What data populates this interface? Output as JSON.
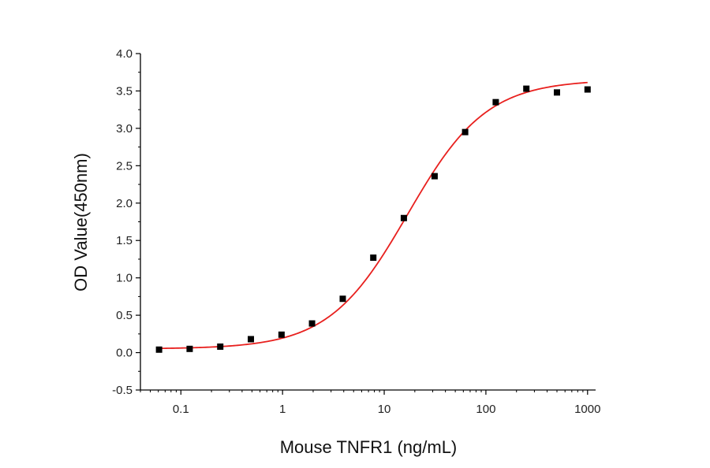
{
  "chart_data": {
    "type": "scatter",
    "title": "",
    "xlabel": "Mouse TNFR1 (ng/mL)",
    "ylabel": "OD Value(450nm)",
    "xscale": "log",
    "xlim": [
      0.04,
      1200
    ],
    "ylim": [
      -0.5,
      4.0
    ],
    "x_ticks": [
      0.1,
      1,
      10,
      100,
      1000
    ],
    "x_tick_labels": [
      "0.1",
      "1",
      "10",
      "100",
      "1000"
    ],
    "y_ticks": [
      -0.5,
      0.0,
      0.5,
      1.0,
      1.5,
      2.0,
      2.5,
      3.0,
      3.5,
      4.0
    ],
    "y_tick_labels": [
      "-0.5",
      "0.0",
      "0.5",
      "1.0",
      "1.5",
      "2.0",
      "2.5",
      "3.0",
      "3.5",
      "4.0"
    ],
    "grid": false,
    "legend": "none",
    "series": [
      {
        "kind": "points",
        "marker": "square",
        "color": "#000000",
        "x": [
          0.061,
          0.122,
          0.244,
          0.488,
          0.977,
          1.95,
          3.91,
          7.81,
          15.6,
          31.3,
          62.5,
          125,
          250,
          500,
          1000
        ],
        "y": [
          0.04,
          0.05,
          0.08,
          0.18,
          0.24,
          0.39,
          0.72,
          1.27,
          1.8,
          2.36,
          2.95,
          3.35,
          3.53,
          3.48,
          3.52
        ]
      },
      {
        "kind": "fit",
        "model": "4PL",
        "color": "#e8201e",
        "params": {
          "bottom": 0.05,
          "top": 3.65,
          "ec50": 17.0,
          "hill": 1.12
        },
        "x_range": [
          0.061,
          1000
        ]
      }
    ]
  }
}
